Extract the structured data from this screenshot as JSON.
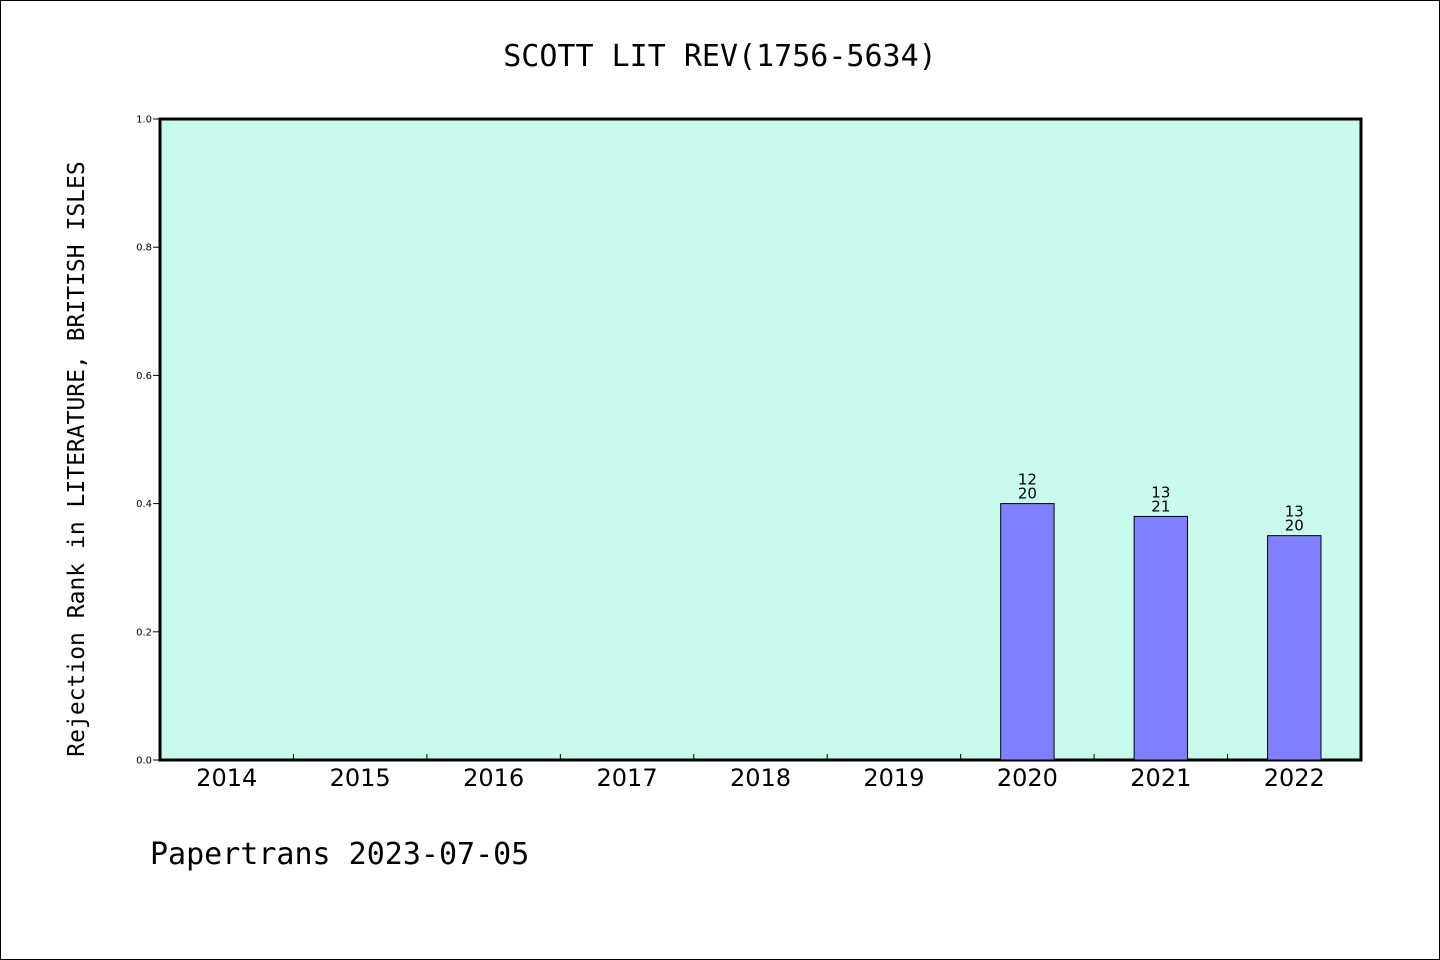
{
  "chart_data": {
    "type": "bar",
    "title": "SCOTT LIT REV(1756-5634)",
    "xlabel": "",
    "ylabel": "Rejection Rank in LITERATURE, BRITISH ISLES",
    "ylim": [
      0,
      1.0
    ],
    "yticks": [
      "0.0",
      "0.2",
      "0.4",
      "0.6",
      "0.8",
      "1.0"
    ],
    "categories": [
      "2014",
      "2015",
      "2016",
      "2017",
      "2018",
      "2019",
      "2020",
      "2021",
      "2022"
    ],
    "values": [
      null,
      null,
      null,
      null,
      null,
      null,
      0.4,
      0.38,
      0.35
    ],
    "bar_labels": [
      null,
      null,
      null,
      null,
      null,
      null,
      {
        "top": "12",
        "bottom": "20"
      },
      {
        "top": "13",
        "bottom": "21"
      },
      {
        "top": "13",
        "bottom": "20"
      }
    ],
    "grid": false,
    "colors": {
      "plot_background": "#c8fbee",
      "bar_fill": "#8080ff",
      "bar_stroke": "#000000"
    }
  },
  "footer": {
    "text": "Papertrans 2023-07-05"
  }
}
